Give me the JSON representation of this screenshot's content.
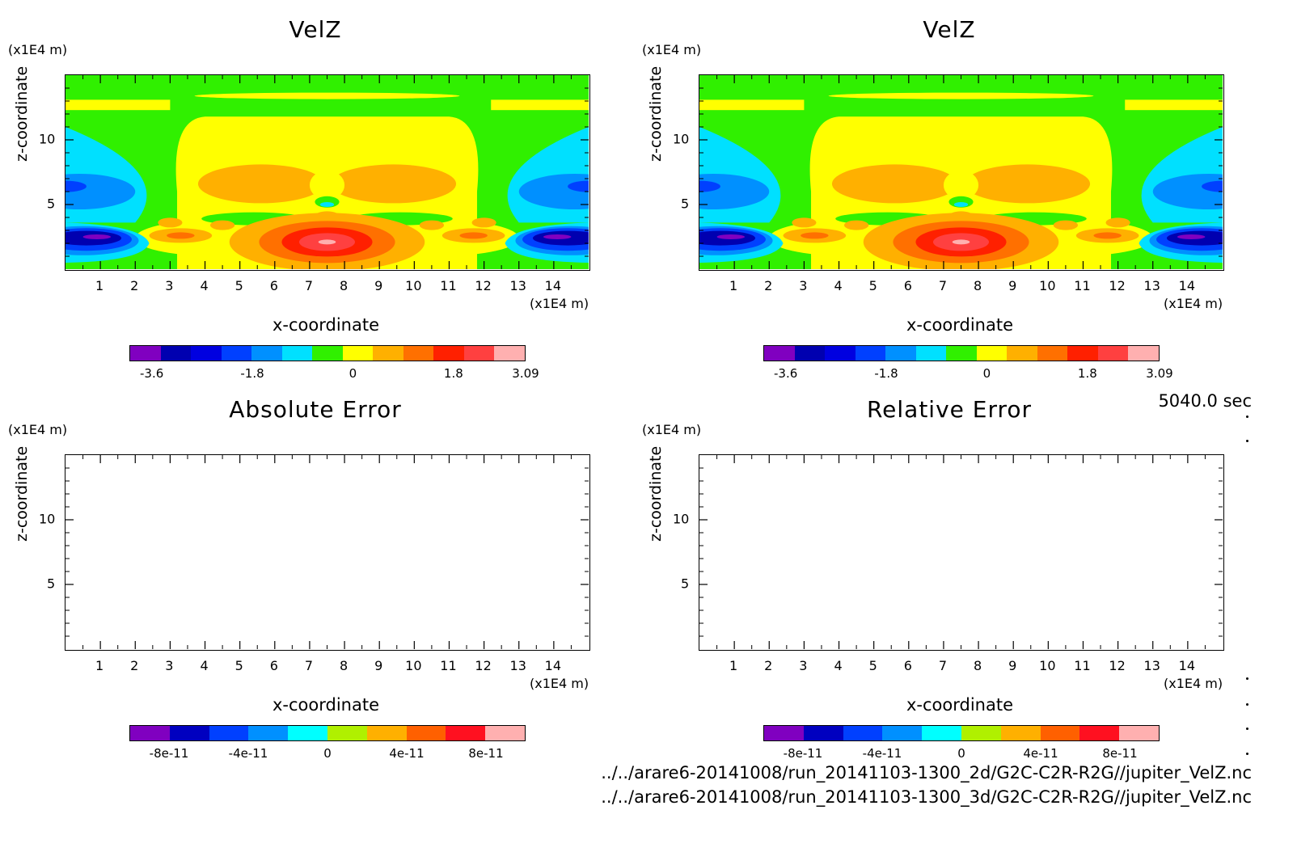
{
  "figure": {
    "timestamp": "5040.0 sec",
    "file_paths": [
      "../../arare6-20141008/run_20141103-1300_2d/G2C-C2R-R2G//jupiter_VelZ.nc",
      "../../arare6-20141008/run_20141103-1300_3d/G2C-C2R-R2G//jupiter_VelZ.nc"
    ]
  },
  "chart_data": [
    {
      "type": "heatmap",
      "title": "VelZ",
      "xlabel": "x-coordinate",
      "ylabel": "z-coordinate",
      "x_unit": "(x1E4 m)",
      "z_unit": "(x1E4 m)",
      "xlim": [
        0,
        15
      ],
      "zlim": [
        0,
        15
      ],
      "xticks": [
        "1",
        "2",
        "3",
        "4",
        "5",
        "6",
        "7",
        "8",
        "9",
        "10",
        "11",
        "12",
        "13",
        "14"
      ],
      "zticks": [
        "5",
        "10"
      ],
      "colorbar": {
        "colors": [
          "#8000c0",
          "#0000b0",
          "#0000e0",
          "#0040ff",
          "#0090ff",
          "#00e0ff",
          "#30f000",
          "#ffff00",
          "#ffb000",
          "#ff7000",
          "#ff2000",
          "#ff4040",
          "#ffb0b0"
        ],
        "labels": [
          "-3.6",
          "-1.8",
          "0",
          "1.8",
          "3.09"
        ],
        "label_values": [
          -3.6,
          -1.8,
          0,
          1.8,
          3.09
        ],
        "range": [
          -4.0,
          3.09
        ]
      }
    },
    {
      "type": "heatmap",
      "title": "VelZ",
      "xlabel": "x-coordinate",
      "ylabel": "z-coordinate",
      "x_unit": "(x1E4 m)",
      "z_unit": "(x1E4 m)",
      "xlim": [
        0,
        15
      ],
      "zlim": [
        0,
        15
      ],
      "xticks": [
        "1",
        "2",
        "3",
        "4",
        "5",
        "6",
        "7",
        "8",
        "9",
        "10",
        "11",
        "12",
        "13",
        "14"
      ],
      "zticks": [
        "5",
        "10"
      ],
      "colorbar": {
        "colors": [
          "#8000c0",
          "#0000b0",
          "#0000e0",
          "#0040ff",
          "#0090ff",
          "#00e0ff",
          "#30f000",
          "#ffff00",
          "#ffb000",
          "#ff7000",
          "#ff2000",
          "#ff4040",
          "#ffb0b0"
        ],
        "labels": [
          "-3.6",
          "-1.8",
          "0",
          "1.8",
          "3.09"
        ],
        "label_values": [
          -3.6,
          -1.8,
          0,
          1.8,
          3.09
        ],
        "range": [
          -4.0,
          3.09
        ]
      }
    },
    {
      "type": "heatmap",
      "title": "Absolute Error",
      "xlabel": "x-coordinate",
      "ylabel": "z-coordinate",
      "x_unit": "(x1E4 m)",
      "z_unit": "(x1E4 m)",
      "xlim": [
        0,
        15
      ],
      "zlim": [
        0,
        15
      ],
      "xticks": [
        "1",
        "2",
        "3",
        "4",
        "5",
        "6",
        "7",
        "8",
        "9",
        "10",
        "11",
        "12",
        "13",
        "14"
      ],
      "zticks": [
        "5",
        "10"
      ],
      "colorbar": {
        "colors": [
          "#8000c0",
          "#0000c0",
          "#0040ff",
          "#0090ff",
          "#00ffff",
          "#b0f000",
          "#ffb000",
          "#ff6000",
          "#ff1020",
          "#ffb0b0"
        ],
        "labels": [
          "-8e-11",
          "-4e-11",
          "0",
          "4e-11",
          "8e-11"
        ],
        "label_values": [
          -8e-11,
          -4e-11,
          0,
          4e-11,
          8e-11
        ],
        "range": [
          -1e-10,
          1e-10
        ]
      }
    },
    {
      "type": "heatmap",
      "title": "Relative Error",
      "xlabel": "x-coordinate",
      "ylabel": "z-coordinate",
      "x_unit": "(x1E4 m)",
      "z_unit": "(x1E4 m)",
      "xlim": [
        0,
        15
      ],
      "zlim": [
        0,
        15
      ],
      "xticks": [
        "1",
        "2",
        "3",
        "4",
        "5",
        "6",
        "7",
        "8",
        "9",
        "10",
        "11",
        "12",
        "13",
        "14"
      ],
      "zticks": [
        "5",
        "10"
      ],
      "colorbar": {
        "colors": [
          "#8000c0",
          "#0000c0",
          "#0040ff",
          "#0090ff",
          "#00ffff",
          "#b0f000",
          "#ffb000",
          "#ff6000",
          "#ff1020",
          "#ffb0b0"
        ],
        "labels": [
          "-8e-11",
          "-4e-11",
          "0",
          "4e-11",
          "8e-11"
        ],
        "label_values": [
          -8e-11,
          -4e-11,
          0,
          4e-11,
          8e-11
        ],
        "range": [
          -1e-10,
          1e-10
        ]
      }
    }
  ]
}
